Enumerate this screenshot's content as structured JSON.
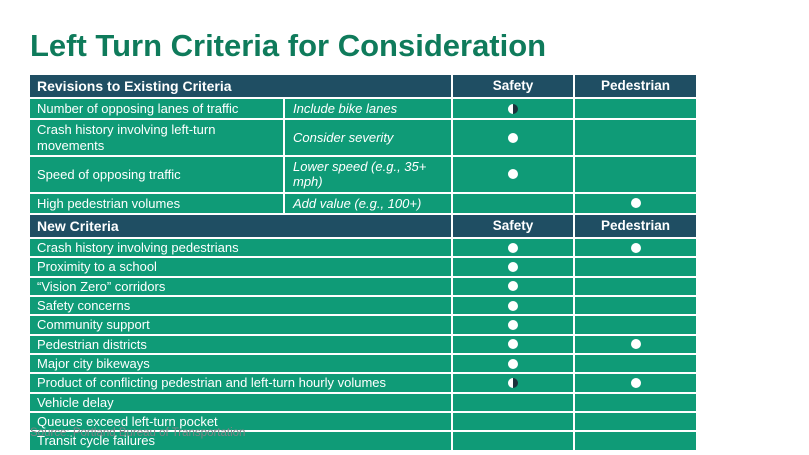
{
  "title": "Left Turn Criteria for Consideration",
  "source": "Source: Portland Bureau of Transportation",
  "colors": {
    "title_green": "#0f7b5b",
    "row_green": "#0f9b77",
    "header_navy": "#1f4e63",
    "marker_white": "#ffffff",
    "marker_dark_half": "#1b313b",
    "source_gray": "#7e8285"
  },
  "markers": {
    "full_label": "full-circle",
    "half_label": "half-circle"
  },
  "table": {
    "sections": [
      {
        "header": "Revisions to Existing Criteria",
        "safety_label": "Safety",
        "pedestrian_label": "Pedestrian",
        "rows": [
          {
            "criteria": "Number of opposing lanes of traffic",
            "note": "Include bike lanes",
            "safety": "half",
            "pedestrian": ""
          },
          {
            "criteria": "Crash history involving left-turn movements",
            "note": "Consider severity",
            "safety": "full",
            "pedestrian": ""
          },
          {
            "criteria": "Speed of opposing traffic",
            "note": "Lower speed (e.g., 35+ mph)",
            "safety": "full",
            "pedestrian": ""
          },
          {
            "criteria": "High pedestrian volumes",
            "note": "Add value (e.g., 100+)",
            "safety": "",
            "pedestrian": "full"
          }
        ]
      },
      {
        "header": "New Criteria",
        "safety_label": "Safety",
        "pedestrian_label": "Pedestrian",
        "rows": [
          {
            "criteria": "Crash history involving pedestrians",
            "safety": "full",
            "pedestrian": "full"
          },
          {
            "criteria": "Proximity to a school",
            "safety": "full",
            "pedestrian": ""
          },
          {
            "criteria": "“Vision Zero” corridors",
            "safety": "full",
            "pedestrian": ""
          },
          {
            "criteria": "Safety concerns",
            "safety": "full",
            "pedestrian": ""
          },
          {
            "criteria": "Community support",
            "safety": "full",
            "pedestrian": ""
          },
          {
            "criteria": "Pedestrian districts",
            "safety": "full",
            "pedestrian": "full"
          },
          {
            "criteria": "Major city bikeways",
            "safety": "full",
            "pedestrian": ""
          },
          {
            "criteria": "Product of conflicting pedestrian and left-turn hourly volumes",
            "safety": "half",
            "pedestrian": "full"
          },
          {
            "criteria": "Vehicle delay",
            "safety": "",
            "pedestrian": ""
          },
          {
            "criteria": "Queues exceed left-turn pocket",
            "safety": "",
            "pedestrian": ""
          },
          {
            "criteria": "Transit cycle failures",
            "safety": "",
            "pedestrian": ""
          }
        ]
      }
    ]
  }
}
